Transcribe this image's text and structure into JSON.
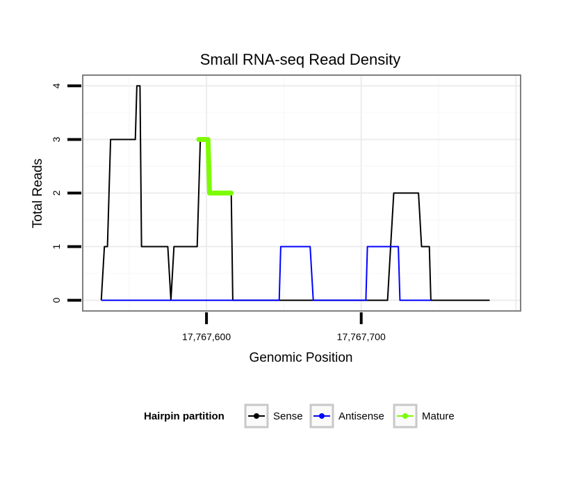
{
  "chart_data": {
    "type": "line",
    "title": "Small RNA-seq Read Density",
    "xlabel": "Genomic Position",
    "ylabel": "Total Reads",
    "xlim": [
      17767520,
      17767803
    ],
    "ylim": [
      -0.2,
      4.2
    ],
    "x_ticks": [
      {
        "value": 17767600,
        "label": "17,767,600"
      },
      {
        "value": 17767700,
        "label": "17,767,700"
      }
    ],
    "y_ticks": [
      {
        "value": 0,
        "label": "0"
      },
      {
        "value": 1,
        "label": "1"
      },
      {
        "value": 2,
        "label": "2"
      },
      {
        "value": 3,
        "label": "3"
      },
      {
        "value": 4,
        "label": "4"
      }
    ],
    "grid": true,
    "legend": {
      "title": "Hairpin partition",
      "position": "bottom",
      "entries": [
        "Sense",
        "Antisense",
        "Mature"
      ]
    },
    "series": [
      {
        "name": "Sense",
        "color": "#000000",
        "x": [
          17767532,
          17767534,
          17767536,
          17767538,
          17767540,
          17767554,
          17767555,
          17767557,
          17767558,
          17767575,
          17767577,
          17767579,
          17767594,
          17767596,
          17767601,
          17767602,
          17767616,
          17767617,
          17767717,
          17767719,
          17767721,
          17767737,
          17767739,
          17767744,
          17767745,
          17767783
        ],
        "values": [
          0,
          1,
          1,
          3,
          3,
          3,
          4,
          4,
          1,
          1,
          0,
          1,
          1,
          3,
          3,
          2,
          2,
          0,
          0,
          1,
          2,
          2,
          1,
          1,
          0,
          0
        ]
      },
      {
        "name": "Antisense",
        "color": "#0000ff",
        "x": [
          17767532,
          17767647,
          17767648,
          17767667,
          17767669,
          17767703,
          17767704,
          17767724,
          17767725,
          17767745
        ],
        "values": [
          0,
          0,
          1,
          1,
          0,
          0,
          1,
          1,
          0,
          0
        ]
      },
      {
        "name": "Mature",
        "color": "#7cfc00",
        "x": [
          17767595,
          17767601,
          17767602,
          17767616
        ],
        "values": [
          3,
          3,
          2,
          2
        ]
      }
    ]
  }
}
